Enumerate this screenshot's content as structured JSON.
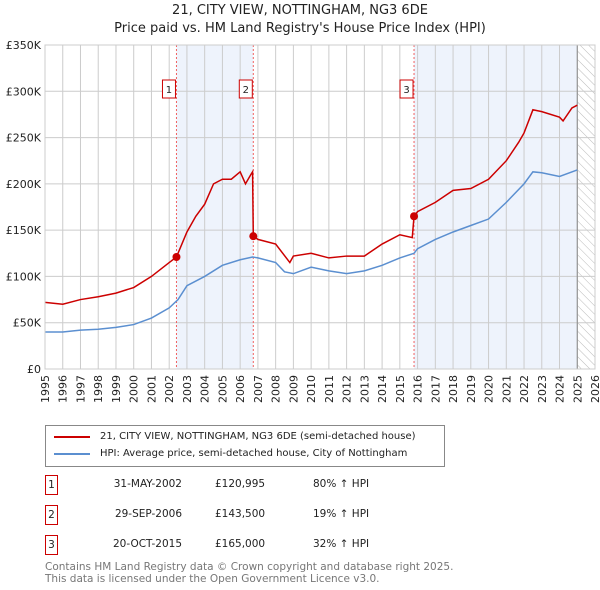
{
  "chart_data": {
    "type": "line",
    "title": "21, CITY VIEW, NOTTINGHAM, NG3 6DE",
    "subtitle": "Price paid vs. HM Land Registry's House Price Index (HPI)",
    "xlim": [
      1995,
      2026
    ],
    "ylim": [
      0,
      350000
    ],
    "x_ticks": [
      "1995",
      "1996",
      "1997",
      "1998",
      "1999",
      "2000",
      "2001",
      "2002",
      "2003",
      "2004",
      "2005",
      "2006",
      "2007",
      "2008",
      "2009",
      "2010",
      "2011",
      "2012",
      "2013",
      "2014",
      "2015",
      "2016",
      "2017",
      "2018",
      "2019",
      "2020",
      "2021",
      "2022",
      "2023",
      "2024",
      "2025",
      "2026"
    ],
    "y_ticks": [
      {
        "v": 0,
        "label": "£0"
      },
      {
        "v": 50000,
        "label": "£50K"
      },
      {
        "v": 100000,
        "label": "£100K"
      },
      {
        "v": 150000,
        "label": "£150K"
      },
      {
        "v": 200000,
        "label": "£200K"
      },
      {
        "v": 250000,
        "label": "£250K"
      },
      {
        "v": 300000,
        "label": "£300K"
      },
      {
        "v": 350000,
        "label": "£350K"
      }
    ],
    "grid": true,
    "series": [
      {
        "name": "21, CITY VIEW, NOTTINGHAM, NG3 6DE (semi-detached house)",
        "color": "#cc0000",
        "x": [
          1995,
          1996,
          1997,
          1998,
          1999,
          2000,
          2001,
          2002,
          2002.41,
          2003,
          2003.5,
          2004,
          2004.5,
          2005,
          2005.5,
          2006,
          2006.3,
          2006.6,
          2006.7,
          2006.74,
          2007,
          2008,
          2008.8,
          2009,
          2010,
          2011,
          2012,
          2013,
          2014,
          2015,
          2015.7,
          2015.8,
          2016,
          2017,
          2018,
          2019,
          2020,
          2021,
          2021.7,
          2022,
          2022.5,
          2023,
          2024,
          2024.2,
          2024.7,
          2025
        ],
        "y": [
          72000,
          70000,
          75000,
          78000,
          82000,
          88000,
          100000,
          115000,
          120995,
          148000,
          165000,
          178000,
          200000,
          205000,
          205000,
          213000,
          200000,
          210000,
          213000,
          143500,
          140000,
          135000,
          115000,
          122000,
          125000,
          120000,
          122000,
          122000,
          135000,
          145000,
          142000,
          165000,
          170000,
          180000,
          193000,
          195000,
          205000,
          225000,
          245000,
          255000,
          280000,
          278000,
          272000,
          268000,
          282000,
          285000
        ]
      },
      {
        "name": "HPI: Average price, semi-detached house, City of Nottingham",
        "color": "#5b8fd0",
        "x": [
          1995,
          1996,
          1997,
          1998,
          1999,
          2000,
          2001,
          2002,
          2002.5,
          2003,
          2004,
          2005,
          2006,
          2006.7,
          2007,
          2008,
          2008.5,
          2009,
          2010,
          2011,
          2012,
          2013,
          2014,
          2015,
          2015.8,
          2016,
          2017,
          2018,
          2019,
          2020,
          2021,
          2022,
          2022.5,
          2023,
          2024,
          2025
        ],
        "y": [
          40000,
          40000,
          42000,
          43000,
          45000,
          48000,
          55000,
          66000,
          75000,
          90000,
          100000,
          112000,
          118000,
          121000,
          120000,
          115000,
          105000,
          103000,
          110000,
          106000,
          103000,
          106000,
          112000,
          120000,
          125000,
          130000,
          140000,
          148000,
          155000,
          162000,
          180000,
          200000,
          213000,
          212000,
          208000,
          215000
        ]
      }
    ],
    "sales": [
      {
        "label": "1",
        "x": 2002.41,
        "y": 120995,
        "date": "31-MAY-2002",
        "price": "£120,995",
        "hpi": "80% ↑ HPI"
      },
      {
        "label": "2",
        "x": 2006.74,
        "y": 143500,
        "date": "29-SEP-2006",
        "price": "£143,500",
        "hpi": "19% ↑ HPI"
      },
      {
        "label": "3",
        "x": 2015.8,
        "y": 165000,
        "date": "20-OCT-2015",
        "price": "£165,000",
        "hpi": "32% ↑ HPI"
      }
    ],
    "forecast_from": 2025.0,
    "legend_position": "below"
  },
  "footer": {
    "line1": "Contains HM Land Registry data © Crown copyright and database right 2025.",
    "line2": "This data is licensed under the Open Government Licence v3.0."
  }
}
